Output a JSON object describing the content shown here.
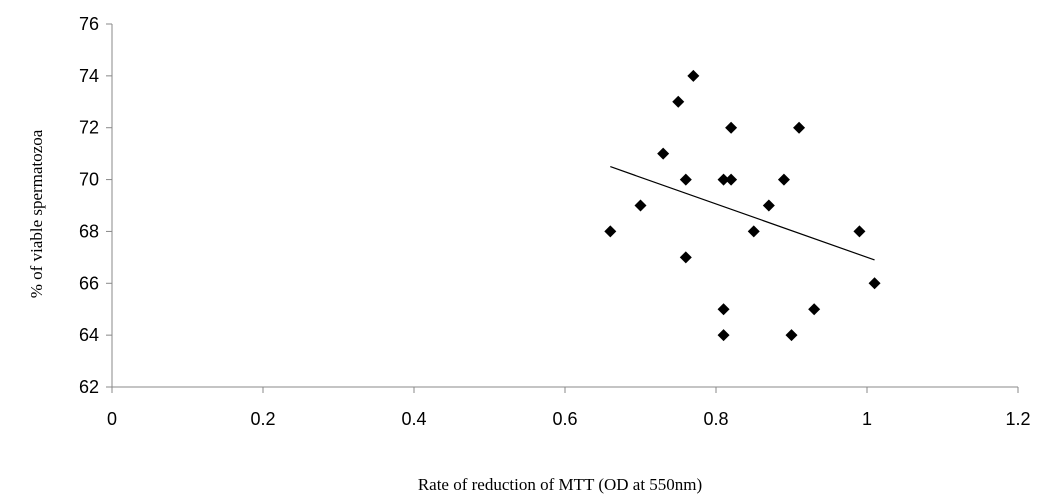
{
  "chart_data": {
    "type": "scatter",
    "title": "",
    "xlabel": "Rate of reduction of MTT (OD at 550nm)",
    "ylabel": "% of viable spermatozoa",
    "xlim": [
      0,
      1.2
    ],
    "ylim": [
      62,
      76
    ],
    "x_ticks": [
      "0",
      "0.2",
      "0.4",
      "0.6",
      "0.8",
      "1",
      "1.2"
    ],
    "y_ticks": [
      "62",
      "64",
      "66",
      "68",
      "70",
      "72",
      "74",
      "76"
    ],
    "grid": false,
    "legend": "none",
    "marker": "diamond",
    "marker_color": "#000000",
    "points": [
      {
        "x": 0.66,
        "y": 68
      },
      {
        "x": 0.7,
        "y": 69
      },
      {
        "x": 0.73,
        "y": 71
      },
      {
        "x": 0.75,
        "y": 73
      },
      {
        "x": 0.76,
        "y": 70
      },
      {
        "x": 0.76,
        "y": 67
      },
      {
        "x": 0.77,
        "y": 74
      },
      {
        "x": 0.81,
        "y": 70
      },
      {
        "x": 0.81,
        "y": 65
      },
      {
        "x": 0.81,
        "y": 64
      },
      {
        "x": 0.82,
        "y": 72
      },
      {
        "x": 0.82,
        "y": 70
      },
      {
        "x": 0.85,
        "y": 68
      },
      {
        "x": 0.87,
        "y": 69
      },
      {
        "x": 0.89,
        "y": 70
      },
      {
        "x": 0.9,
        "y": 64
      },
      {
        "x": 0.91,
        "y": 72
      },
      {
        "x": 0.93,
        "y": 65
      },
      {
        "x": 0.99,
        "y": 68
      },
      {
        "x": 1.01,
        "y": 66
      }
    ],
    "trendline": {
      "x1": 0.66,
      "y1": 70.5,
      "x2": 1.01,
      "y2": 66.9,
      "color": "#000000"
    }
  }
}
